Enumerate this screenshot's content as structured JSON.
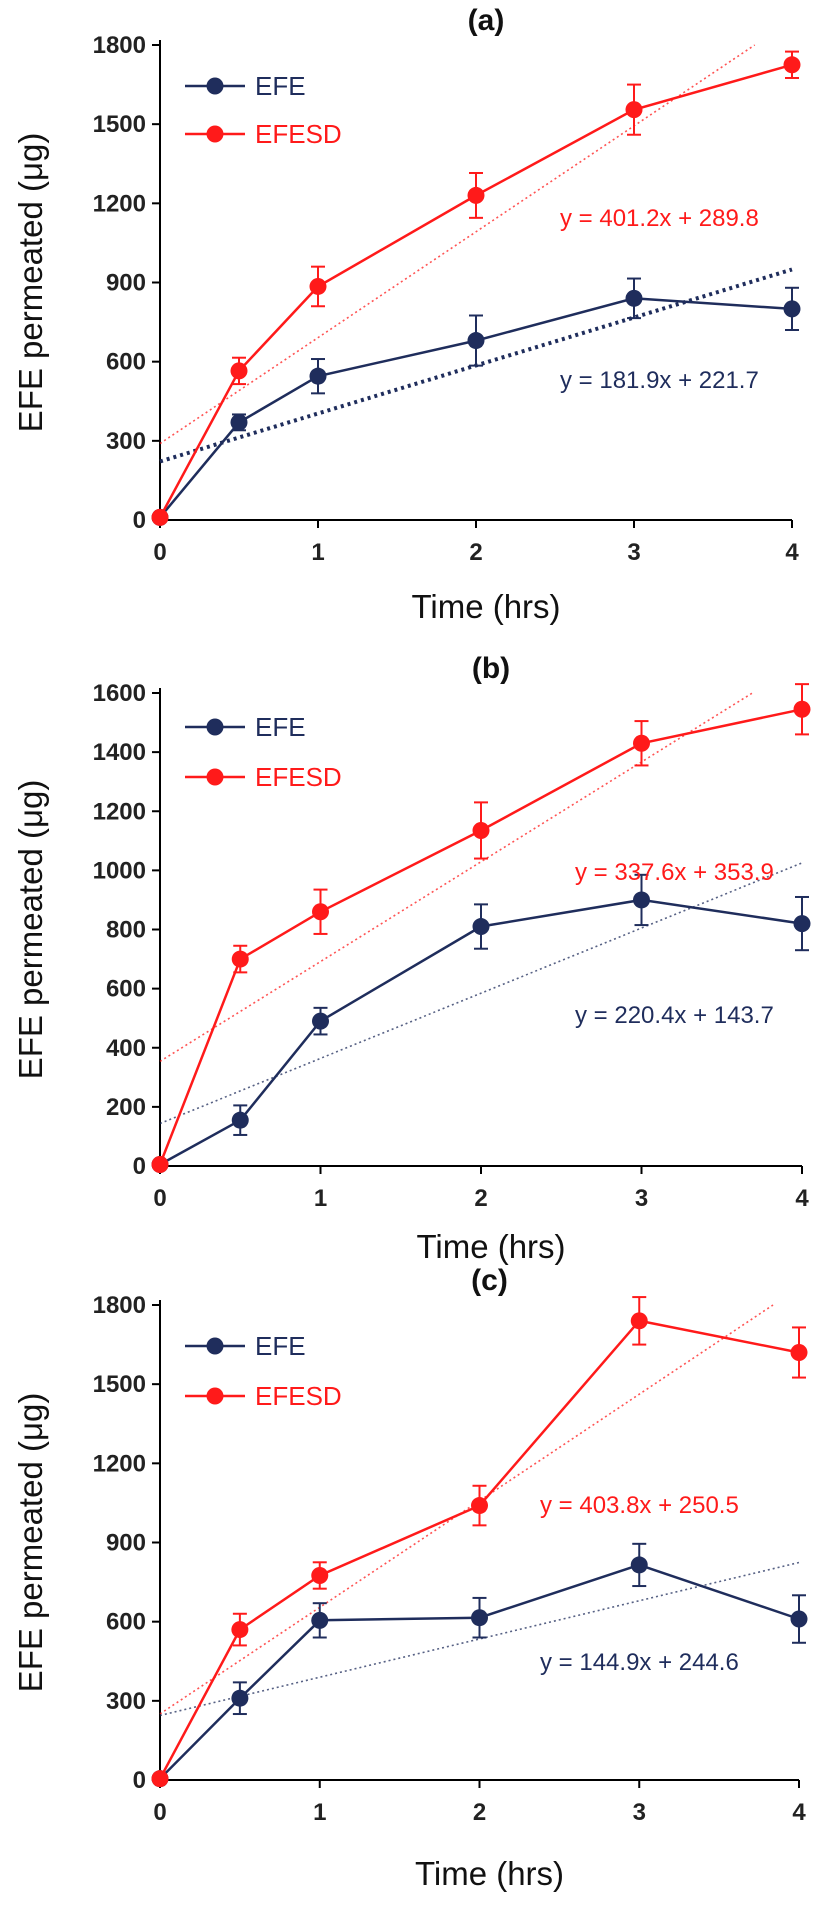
{
  "colors": {
    "efe": "#1f2d5c",
    "efesd": "#ff1a1a",
    "axis": "#000000",
    "text": "#111111"
  },
  "chart_data": [
    {
      "type": "line",
      "title": "(a)",
      "xlabel": "Time (hrs)",
      "ylabel": "EFE permeated (μg)",
      "x": [
        0,
        0.5,
        1,
        2,
        3,
        4
      ],
      "xticks": [
        0,
        1,
        2,
        3,
        4
      ],
      "xlim": [
        0,
        4
      ],
      "ylim": [
        0,
        1800
      ],
      "yticks": [
        0,
        300,
        600,
        900,
        1200,
        1500,
        1800
      ],
      "legend": "top-left",
      "grid": false,
      "series": [
        {
          "name": "EFE",
          "color": "#1f2d5c",
          "values": [
            10,
            370,
            545,
            680,
            840,
            800
          ],
          "errors": [
            10,
            30,
            65,
            95,
            75,
            80
          ]
        },
        {
          "name": "EFESD",
          "color": "#ff1a1a",
          "values": [
            10,
            565,
            885,
            1230,
            1555,
            1725
          ],
          "errors": [
            10,
            50,
            75,
            85,
            95,
            50
          ]
        }
      ],
      "trendlines": [
        {
          "series": "EFE",
          "slope": 181.9,
          "intercept": 221.7,
          "label": "y = 181.9x + 221.7",
          "style": "dotted-bold"
        },
        {
          "series": "EFESD",
          "slope": 401.2,
          "intercept": 289.8,
          "label": "y = 401.2x + 289.8",
          "style": "dotted-thin"
        }
      ]
    },
    {
      "type": "line",
      "title": "(b)",
      "xlabel": "Time (hrs)",
      "ylabel": "EFE permeated (μg)",
      "x": [
        0,
        0.5,
        1,
        2,
        3,
        4
      ],
      "xticks": [
        0,
        1,
        2,
        3,
        4
      ],
      "xlim": [
        0,
        4
      ],
      "ylim": [
        0,
        1600
      ],
      "yticks": [
        0,
        200,
        400,
        600,
        800,
        1000,
        1200,
        1400,
        1600
      ],
      "legend": "top-left",
      "grid": false,
      "series": [
        {
          "name": "EFE",
          "color": "#1f2d5c",
          "values": [
            5,
            155,
            490,
            810,
            900,
            820
          ],
          "errors": [
            5,
            50,
            45,
            75,
            85,
            90
          ]
        },
        {
          "name": "EFESD",
          "color": "#ff1a1a",
          "values": [
            5,
            700,
            860,
            1135,
            1430,
            1545
          ],
          "errors": [
            5,
            45,
            75,
            95,
            75,
            85
          ]
        }
      ],
      "trendlines": [
        {
          "series": "EFE",
          "slope": 220.4,
          "intercept": 143.7,
          "label": "y = 220.4x + 143.7",
          "style": "dotted-thin"
        },
        {
          "series": "EFESD",
          "slope": 337.6,
          "intercept": 353.9,
          "label": "y = 337.6x + 353.9",
          "style": "dotted-thin"
        }
      ]
    },
    {
      "type": "line",
      "title": "(c)",
      "xlabel": "Time (hrs)",
      "ylabel": "EFE permeated (μg)",
      "x": [
        0,
        0.5,
        1,
        2,
        3,
        4
      ],
      "xticks": [
        0,
        1,
        2,
        3,
        4
      ],
      "xlim": [
        0,
        4
      ],
      "ylim": [
        0,
        1800
      ],
      "yticks": [
        0,
        300,
        600,
        900,
        1200,
        1500,
        1800
      ],
      "legend": "top-left",
      "grid": false,
      "series": [
        {
          "name": "EFE",
          "color": "#1f2d5c",
          "values": [
            5,
            310,
            605,
            615,
            815,
            610
          ],
          "errors": [
            5,
            60,
            65,
            75,
            80,
            90
          ]
        },
        {
          "name": "EFESD",
          "color": "#ff1a1a",
          "values": [
            5,
            570,
            775,
            1040,
            1740,
            1620
          ],
          "errors": [
            5,
            60,
            50,
            75,
            90,
            95
          ]
        }
      ],
      "trendlines": [
        {
          "series": "EFE",
          "slope": 144.9,
          "intercept": 244.6,
          "label": "y = 144.9x + 244.6",
          "style": "dotted-thin"
        },
        {
          "series": "EFESD",
          "slope": 403.8,
          "intercept": 250.5,
          "label": "y = 403.8x + 250.5",
          "style": "dotted-thin"
        }
      ]
    }
  ]
}
